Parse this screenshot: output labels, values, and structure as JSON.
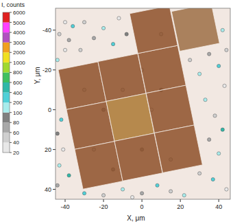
{
  "chart_data": {
    "type": "scatter",
    "xlabel": "X, μm",
    "ylabel": "Y, μm",
    "xlim": [
      -45,
      46
    ],
    "ylim": [
      45,
      -51
    ],
    "xticks": [
      -40,
      -20,
      0,
      20,
      40
    ],
    "yticks": [
      -40,
      -20,
      0,
      20,
      40
    ],
    "colorbar": {
      "label": "I, counts",
      "ticks": [
        20,
        40,
        60,
        80,
        100,
        200,
        400,
        600,
        800,
        1000,
        2000,
        3000,
        4000,
        5000,
        6000
      ],
      "colors": [
        "#e8e8e8",
        "#cfcfcf",
        "#a8a8a8",
        "#808080",
        "#a8ecec",
        "#50d0d8",
        "#30b8a8",
        "#40c060",
        "#a0d830",
        "#f0e020",
        "#f0a020",
        "#b050c0",
        "#ff40ff",
        "#e02020"
      ]
    },
    "x": [
      -43,
      -40,
      -44,
      -38,
      -42,
      -44,
      -41,
      -43,
      -38,
      -44,
      -40,
      -36,
      -30,
      -20,
      -12,
      -25,
      -15,
      -8,
      -32,
      25,
      30,
      35,
      40,
      43,
      33,
      38,
      42,
      35,
      40,
      30,
      37,
      44,
      42,
      44,
      -30,
      -20,
      -10,
      0,
      8,
      15,
      22,
      -5,
      -30,
      -20,
      -10,
      0,
      10,
      -25,
      0,
      15,
      5,
      -15,
      10
    ],
    "values": [
      -38,
      -30,
      -25,
      -35,
      5,
      12,
      20,
      28,
      33,
      38,
      -44,
      -42,
      -44,
      -41,
      -46,
      -36,
      -33,
      -38,
      -30,
      -25,
      -18,
      -28,
      -22,
      -12,
      -5,
      3,
      10,
      15,
      22,
      32,
      35,
      40,
      -40,
      -30,
      42,
      43,
      40,
      42,
      38,
      41,
      43,
      44,
      -10,
      0,
      -10,
      -20,
      -10,
      20,
      20,
      25,
      0,
      30,
      -38
    ],
    "intensity": [
      40,
      30,
      120,
      60,
      250,
      90,
      30,
      150,
      500,
      70,
      30,
      200,
      40,
      120,
      30,
      60,
      300,
      80,
      40,
      40,
      150,
      60,
      250,
      30,
      120,
      40,
      400,
      70,
      180,
      50,
      300,
      30,
      100,
      40,
      200,
      40,
      120,
      60,
      300,
      40,
      150,
      30,
      40,
      60,
      40,
      30,
      80,
      40,
      60,
      40,
      30,
      60,
      40
    ],
    "tiles": [
      {
        "x": [
          -43.6,
          -22.9,
          -18.6,
          -39.3
        ],
        "y": [
          -20.1,
          -24.1,
          -4.1,
          -0.1
        ],
        "color": "#8a4a22"
      },
      {
        "x": [
          -22.9,
          -2.2,
          2.1,
          -18.6
        ],
        "y": [
          -24.2,
          -28.2,
          -8.2,
          -4.2
        ],
        "color": "#8a4a22"
      },
      {
        "x": [
          -2.1,
          18.6,
          22.9,
          2.2
        ],
        "y": [
          -28.3,
          -32.3,
          -12.3,
          -8.3
        ],
        "color": "#8a4a22"
      },
      {
        "x": [
          -6.4,
          14.3,
          18.6,
          -2.1
        ],
        "y": [
          -48.3,
          -52.3,
          -32.3,
          -28.3
        ],
        "color": "#8a4a22"
      },
      {
        "x": [
          -39.3,
          -18.6,
          -14.3,
          -35
        ],
        "y": [
          -0.1,
          -4.1,
          15.9,
          19.9
        ],
        "color": "#8a4a22"
      },
      {
        "x": [
          -18.6,
          2.1,
          6.4,
          -14.3
        ],
        "y": [
          -4.2,
          -8.2,
          11.8,
          15.8
        ],
        "color": "#a8742c"
      },
      {
        "x": [
          2.2,
          22.9,
          27.2,
          6.5
        ],
        "y": [
          -8.3,
          -12.3,
          7.7,
          11.7
        ],
        "color": "#8a4a22"
      },
      {
        "x": [
          -35,
          -14.3,
          -10,
          -30.7
        ],
        "y": [
          19.9,
          15.9,
          35.9,
          39.9
        ],
        "color": "#8a4a22"
      },
      {
        "x": [
          -14.3,
          6.4,
          10.7,
          -10
        ],
        "y": [
          15.8,
          11.8,
          31.8,
          35.8
        ],
        "color": "#8a4a22"
      },
      {
        "x": [
          6.5,
          27.2,
          31.5,
          10.8
        ],
        "y": [
          11.7,
          7.7,
          27.7,
          31.7
        ],
        "color": "#8a4a22"
      },
      {
        "x": [
          15.4,
          36.1,
          40.4,
          19.7
        ],
        "y": [
          -49.4,
          -53.4,
          -33.4,
          -29.4
        ],
        "color": "#9a6a40"
      }
    ]
  }
}
